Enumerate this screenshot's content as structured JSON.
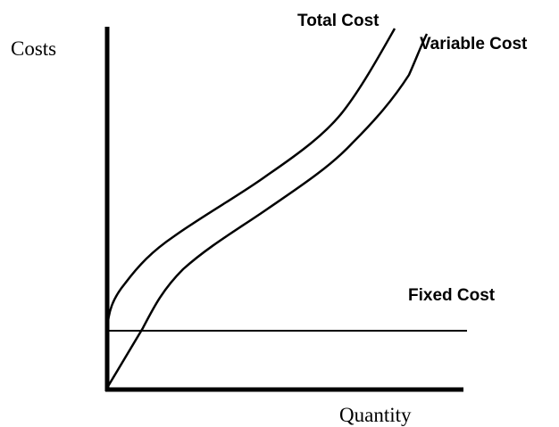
{
  "axes": {
    "y_label": "Costs",
    "x_label": "Quantity"
  },
  "curves": [
    {
      "label": "Total Cost"
    },
    {
      "label": "Variable Cost"
    },
    {
      "label": "Fixed Cost"
    }
  ]
}
